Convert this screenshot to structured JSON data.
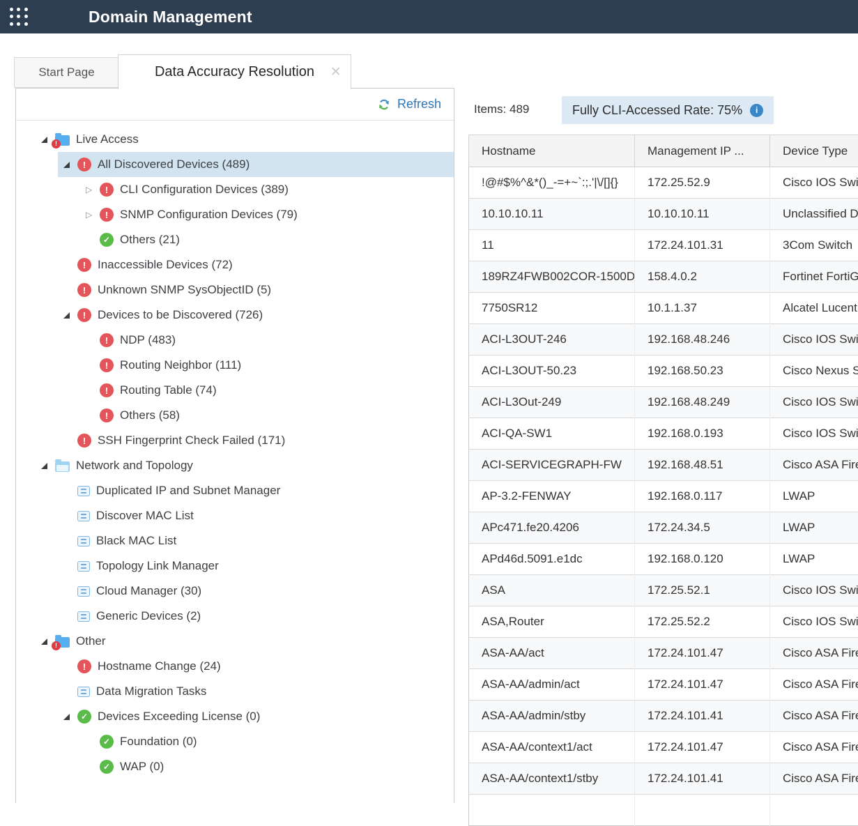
{
  "header": {
    "title": "Domain Management"
  },
  "tabs": [
    {
      "label": "Start Page",
      "active": false
    },
    {
      "label": "Data Accuracy Resolution",
      "active": true
    }
  ],
  "tree_panel": {
    "refresh_label": "Refresh",
    "items": [
      {
        "level": 0,
        "expander": "expanded",
        "icon": "folder",
        "badge": true,
        "label": "Live Access"
      },
      {
        "level": 1,
        "expander": "expanded",
        "icon": "alert",
        "label": "All Discovered Devices (489)",
        "selected": true
      },
      {
        "level": 2,
        "expander": "collapsed",
        "icon": "alert",
        "label": "CLI Configuration Devices (389)"
      },
      {
        "level": 2,
        "expander": "collapsed",
        "icon": "alert",
        "label": "SNMP Configuration Devices (79)"
      },
      {
        "level": 2,
        "expander": "none",
        "icon": "check",
        "label": "Others (21)"
      },
      {
        "level": 1,
        "expander": "none",
        "icon": "alert",
        "label": "Inaccessible Devices (72)"
      },
      {
        "level": 1,
        "expander": "none",
        "icon": "alert",
        "label": "Unknown SNMP SysObjectID (5)"
      },
      {
        "level": 1,
        "expander": "expanded",
        "icon": "alert",
        "label": "Devices to be Discovered (726)"
      },
      {
        "level": 2,
        "expander": "none",
        "icon": "alert",
        "label": "NDP (483)"
      },
      {
        "level": 2,
        "expander": "none",
        "icon": "alert",
        "label": "Routing Neighbor (111)"
      },
      {
        "level": 2,
        "expander": "none",
        "icon": "alert",
        "label": "Routing Table (74)"
      },
      {
        "level": 2,
        "expander": "none",
        "icon": "alert",
        "label": "Others (58)"
      },
      {
        "level": 1,
        "expander": "none",
        "icon": "alert",
        "label": "SSH Fingerprint Check Failed (171)"
      },
      {
        "level": 0,
        "expander": "expanded",
        "icon": "folder-open",
        "badge": false,
        "label": "Network and Topology"
      },
      {
        "level": 1,
        "expander": "none",
        "icon": "list",
        "label": "Duplicated IP and Subnet Manager"
      },
      {
        "level": 1,
        "expander": "none",
        "icon": "list",
        "label": "Discover MAC List"
      },
      {
        "level": 1,
        "expander": "none",
        "icon": "list",
        "label": "Black MAC List"
      },
      {
        "level": 1,
        "expander": "none",
        "icon": "list",
        "label": "Topology Link Manager"
      },
      {
        "level": 1,
        "expander": "none",
        "icon": "list",
        "label": "Cloud Manager (30)"
      },
      {
        "level": 1,
        "expander": "none",
        "icon": "list",
        "label": "Generic Devices (2)"
      },
      {
        "level": 0,
        "expander": "expanded",
        "icon": "folder",
        "badge": true,
        "label": "Other"
      },
      {
        "level": 1,
        "expander": "none",
        "icon": "alert",
        "label": "Hostname Change (24)"
      },
      {
        "level": 1,
        "expander": "none",
        "icon": "list",
        "label": "Data Migration Tasks"
      },
      {
        "level": 1,
        "expander": "expanded",
        "icon": "check",
        "label": "Devices Exceeding License (0)"
      },
      {
        "level": 2,
        "expander": "none",
        "icon": "check",
        "label": "Foundation (0)"
      },
      {
        "level": 2,
        "expander": "none",
        "icon": "check",
        "label": "WAP (0)"
      }
    ]
  },
  "content": {
    "items_text": "Items: 489",
    "rate_text": "Fully CLI-Accessed Rate: 75%"
  },
  "table": {
    "columns": [
      "Hostname",
      "Management IP ...",
      "Device Type"
    ],
    "rows": [
      [
        "!@#$%^&*()_-=+~`:;.'|\\/[]{}",
        "172.25.52.9",
        "Cisco IOS Switc"
      ],
      [
        "10.10.10.11",
        "10.10.10.11",
        "Unclassified D"
      ],
      [
        "11",
        "172.24.101.31",
        "3Com Switch"
      ],
      [
        "189RZ4FWB002COR-1500D",
        "158.4.0.2",
        "Fortinet FortiG"
      ],
      [
        "7750SR12",
        "10.1.1.37",
        "Alcatel Lucent"
      ],
      [
        "ACI-L3OUT-246",
        "192.168.48.246",
        "Cisco IOS Switc"
      ],
      [
        "ACI-L3OUT-50.23",
        "192.168.50.23",
        "Cisco Nexus Sw"
      ],
      [
        "ACI-L3Out-249",
        "192.168.48.249",
        "Cisco IOS Switc"
      ],
      [
        "ACI-QA-SW1",
        "192.168.0.193",
        "Cisco IOS Switc"
      ],
      [
        "ACI-SERVICEGRAPH-FW",
        "192.168.48.51",
        "Cisco ASA Firew"
      ],
      [
        "AP-3.2-FENWAY",
        "192.168.0.117",
        "LWAP"
      ],
      [
        "APc471.fe20.4206",
        "172.24.34.5",
        "LWAP"
      ],
      [
        "APd46d.5091.e1dc",
        "192.168.0.120",
        "LWAP"
      ],
      [
        "ASA",
        "172.25.52.1",
        "Cisco IOS Switc"
      ],
      [
        "ASA,Router",
        "172.25.52.2",
        "Cisco IOS Switc"
      ],
      [
        "ASA-AA/act",
        "172.24.101.47",
        "Cisco ASA Firew"
      ],
      [
        "ASA-AA/admin/act",
        "172.24.101.47",
        "Cisco ASA Firew"
      ],
      [
        "ASA-AA/admin/stby",
        "172.24.101.41",
        "Cisco ASA Firew"
      ],
      [
        "ASA-AA/context1/act",
        "172.24.101.47",
        "Cisco ASA Firew"
      ],
      [
        "ASA-AA/context1/stby",
        "172.24.101.41",
        "Cisco ASA Firew"
      ],
      [
        "",
        "",
        ""
      ]
    ]
  },
  "icons": {
    "close": "×",
    "info": "i",
    "alert": "!",
    "check": "✓",
    "collapsed": "▷"
  },
  "colors": {
    "header_bg": "#2d3e50",
    "accent_blue": "#2e76b8",
    "alert_red": "#e4555b",
    "ok_green": "#5abb49",
    "folder_blue": "#55aef0",
    "selection_bg": "#d2e4f0",
    "rate_box_bg": "#dde9f4",
    "info_blue": "#3a87c8"
  }
}
